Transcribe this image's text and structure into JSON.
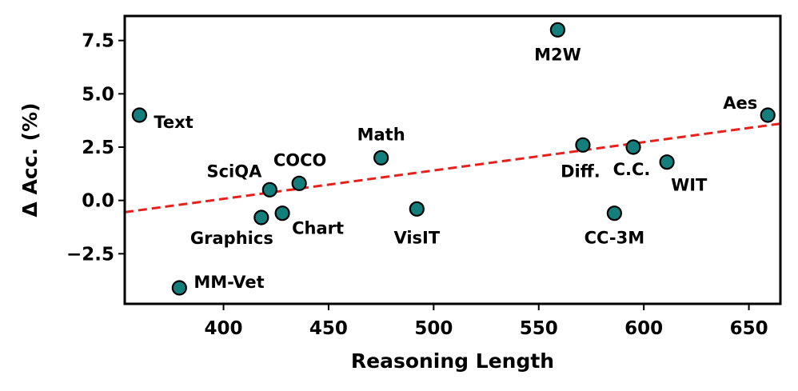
{
  "chart_data": {
    "type": "scatter",
    "title": "",
    "xlabel": "Reasoning Length",
    "ylabel": "Δ Acc. (%)",
    "xlim": [
      353,
      665
    ],
    "ylim": [
      -4.85,
      8.65
    ],
    "xticks": [
      400,
      450,
      500,
      550,
      600,
      650
    ],
    "yticks": [
      -2.5,
      0.0,
      2.5,
      5.0,
      7.5
    ],
    "xtick_labels": [
      "400",
      "450",
      "500",
      "550",
      "600",
      "650"
    ],
    "ytick_labels": [
      "−2.5",
      "0.0",
      "2.5",
      "5.0",
      "7.5"
    ],
    "grid": false,
    "marker_color": "#137e7c",
    "trend_color": "#e8201c",
    "points": [
      {
        "label": "Text",
        "x": 360,
        "y": 4.0
      },
      {
        "label": "MM-Vet",
        "x": 379,
        "y": -4.1
      },
      {
        "label": "Graphics",
        "x": 418,
        "y": -0.8
      },
      {
        "label": "SciQA",
        "x": 422,
        "y": 0.5
      },
      {
        "label": "Chart",
        "x": 428,
        "y": -0.6
      },
      {
        "label": "COCO",
        "x": 436,
        "y": 0.8
      },
      {
        "label": "Math",
        "x": 475,
        "y": 2.0
      },
      {
        "label": "VisIT",
        "x": 492,
        "y": -0.4
      },
      {
        "label": "M2W",
        "x": 559,
        "y": 8.0
      },
      {
        "label": "Diff.",
        "x": 571,
        "y": 2.6
      },
      {
        "label": "CC-3M",
        "x": 586,
        "y": -0.6
      },
      {
        "label": "C.C.",
        "x": 595,
        "y": 2.5
      },
      {
        "label": "WIT",
        "x": 611,
        "y": 1.8
      },
      {
        "label": "Aes",
        "x": 659,
        "y": 4.0
      }
    ],
    "trend_line": {
      "x": [
        353,
        665
      ],
      "y": [
        -0.55,
        3.6
      ]
    }
  }
}
